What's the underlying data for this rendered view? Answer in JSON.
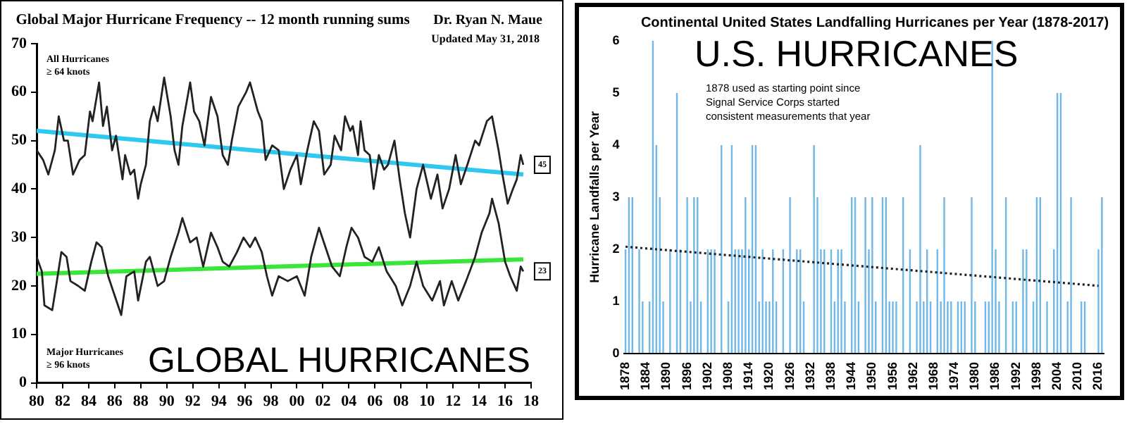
{
  "chart_data": [
    {
      "type": "line",
      "title": "Global Major Hurricane Frequency -- 12 month running sums",
      "xlim": [
        1980,
        2018
      ],
      "xticks": [
        {
          "value": 1980,
          "label": "80"
        },
        {
          "value": 1982,
          "label": "82"
        },
        {
          "value": 1984,
          "label": "84"
        },
        {
          "value": 1986,
          "label": "86"
        },
        {
          "value": 1988,
          "label": "88"
        },
        {
          "value": 1990,
          "label": "90"
        },
        {
          "value": 1992,
          "label": "92"
        },
        {
          "value": 1994,
          "label": "94"
        },
        {
          "value": 1996,
          "label": "96"
        },
        {
          "value": 1998,
          "label": "98"
        },
        {
          "value": 2000,
          "label": "00"
        },
        {
          "value": 2002,
          "label": "02"
        },
        {
          "value": 2004,
          "label": "04"
        },
        {
          "value": 2006,
          "label": "06"
        },
        {
          "value": 2008,
          "label": "08"
        },
        {
          "value": 2010,
          "label": "10"
        },
        {
          "value": 2012,
          "label": "12"
        },
        {
          "value": 2014,
          "label": "14"
        },
        {
          "value": 2016,
          "label": "16"
        },
        {
          "value": 2018,
          "label": "18"
        }
      ],
      "ylim": [
        0,
        70
      ],
      "yticks": [
        0,
        10,
        20,
        30,
        40,
        50,
        60,
        70
      ],
      "grid": false,
      "legend": false,
      "marker": "none",
      "series": [
        {
          "color": "#222222",
          "x": [
            1980.0,
            1980.5,
            1980.9,
            1981.4,
            1981.7,
            1982.1,
            1982.4,
            1982.8,
            1983.3,
            1983.7,
            1984.1,
            1984.3,
            1984.8,
            1985.1,
            1985.4,
            1985.8,
            1986.1,
            1986.6,
            1986.8,
            1987.2,
            1987.5,
            1987.8,
            1988.0,
            1988.4,
            1988.7,
            1989.0,
            1989.3,
            1989.8,
            1990.3,
            1990.6,
            1990.9,
            1991.2,
            1991.8,
            1992.1,
            1992.5,
            1992.9,
            1993.4,
            1993.9,
            1994.3,
            1994.7,
            1995.0,
            1995.5,
            1996.1,
            1996.4,
            1997.0,
            1997.3,
            1997.6,
            1998.1,
            1998.6,
            1999.0,
            1999.5,
            2000.0,
            2000.3,
            2000.8,
            2001.3,
            2001.7,
            2002.1,
            2002.6,
            2002.9,
            2003.4,
            2003.7,
            2004.1,
            2004.3,
            2004.7,
            2004.9,
            2005.2,
            2005.6,
            2005.9,
            2006.3,
            2006.7,
            2007.0,
            2007.5,
            2007.9,
            2008.3,
            2008.7,
            2009.2,
            2009.7,
            2010.3,
            2010.8,
            2011.2,
            2011.7,
            2012.2,
            2012.6,
            2013.1,
            2013.7,
            2014.0,
            2014.6,
            2015.0,
            2015.5,
            2015.8,
            2016.2,
            2016.6,
            2016.9,
            2017.2,
            2017.4
          ],
          "values": [
            48,
            46,
            43,
            48,
            55,
            50,
            50,
            43,
            46,
            47,
            56,
            54,
            62,
            53,
            57,
            48,
            51,
            42,
            47,
            43,
            44,
            38,
            41,
            45,
            54,
            57,
            54,
            63,
            55,
            48,
            45,
            53,
            62,
            56,
            54,
            49,
            59,
            55,
            47,
            45,
            50,
            57,
            60,
            62,
            56,
            54,
            46,
            49,
            48,
            40,
            44,
            47,
            41,
            48,
            54,
            52,
            43,
            45,
            51,
            48,
            55,
            52,
            53,
            47,
            54,
            48,
            47,
            40,
            47,
            44,
            45,
            50,
            42,
            35,
            30,
            40,
            45,
            38,
            43,
            36,
            40,
            47,
            41,
            45,
            50,
            49,
            54,
            55,
            48,
            43,
            37,
            40,
            42,
            47,
            45
          ]
        },
        {
          "color": "#222222",
          "x": [
            1980.0,
            1980.4,
            1980.6,
            1981.2,
            1981.5,
            1981.9,
            1982.3,
            1982.6,
            1983.2,
            1983.7,
            1984.2,
            1984.6,
            1985.0,
            1985.5,
            1986.0,
            1986.5,
            1986.9,
            1987.5,
            1987.8,
            1988.4,
            1988.7,
            1989.3,
            1989.8,
            1990.3,
            1990.9,
            1991.2,
            1991.8,
            1992.3,
            1992.8,
            1993.4,
            1993.9,
            1994.3,
            1994.8,
            1995.4,
            1995.9,
            1996.4,
            1996.8,
            1997.3,
            1997.7,
            1998.1,
            1998.6,
            1999.3,
            2000.0,
            2000.6,
            2001.1,
            2001.7,
            2002.2,
            2002.7,
            2003.3,
            2003.8,
            2004.2,
            2004.7,
            2005.2,
            2005.8,
            2006.3,
            2006.9,
            2007.6,
            2008.1,
            2008.7,
            2009.2,
            2009.7,
            2010.4,
            2011.0,
            2011.3,
            2011.9,
            2012.4,
            2013.0,
            2013.7,
            2014.2,
            2014.8,
            2015.0,
            2015.5,
            2016.0,
            2016.4,
            2016.9,
            2017.2,
            2017.4
          ],
          "values": [
            26,
            23,
            16,
            15,
            20,
            27,
            26,
            21,
            20,
            19,
            25,
            29,
            28,
            22,
            18,
            14,
            22,
            23,
            17,
            25,
            26,
            20,
            21,
            26,
            31,
            34,
            29,
            30,
            24,
            31,
            28,
            25,
            24,
            27,
            30,
            28,
            30,
            27,
            22,
            18,
            22,
            21,
            22,
            18,
            26,
            32,
            28,
            24,
            22,
            28,
            32,
            30,
            26,
            25,
            28,
            23,
            20,
            16,
            20,
            25,
            20,
            17,
            21,
            16,
            21,
            17,
            21,
            26,
            31,
            35,
            38,
            33,
            25,
            22,
            19,
            24,
            23
          ]
        },
        {
          "color": "#2ec8f0",
          "x": [
            1980,
            2017.4
          ],
          "values": [
            52,
            43
          ]
        },
        {
          "color": "#39e639",
          "x": [
            1980,
            2017.4
          ],
          "values": [
            22.5,
            25.5
          ]
        }
      ],
      "annotations": [
        "Dr. Ryan N. Maue",
        "Updated May 31, 2018",
        "All Hurricanes\n≥ 64 knots",
        "Major Hurricanes\n≥ 96 knots",
        "GLOBAL HURRICANES",
        {
          "text": "45",
          "x": 2017.4,
          "y": 45
        },
        {
          "text": "23",
          "x": 2017.4,
          "y": 23
        }
      ]
    },
    {
      "type": "bar",
      "title": "Continental United States Landfalling Hurricanes per Year (1878-2017)",
      "ylabel": "Hurricane Landfalls per Year",
      "categories": [
        "1878",
        null,
        null,
        null,
        null,
        null,
        "1884",
        null,
        null,
        null,
        null,
        null,
        "1890",
        null,
        null,
        null,
        null,
        null,
        "1896",
        null,
        null,
        null,
        null,
        null,
        "1902",
        null,
        null,
        null,
        null,
        null,
        "1908",
        null,
        null,
        null,
        null,
        null,
        "1914",
        null,
        null,
        null,
        null,
        null,
        "1920",
        null,
        null,
        null,
        null,
        null,
        "1926",
        null,
        null,
        null,
        null,
        null,
        "1932",
        null,
        null,
        null,
        null,
        null,
        "1938",
        null,
        null,
        null,
        null,
        null,
        "1944",
        null,
        null,
        null,
        null,
        null,
        "1950",
        null,
        null,
        null,
        null,
        null,
        "1956",
        null,
        null,
        null,
        null,
        null,
        "1962",
        null,
        null,
        null,
        null,
        null,
        "1968",
        null,
        null,
        null,
        null,
        null,
        "1974",
        null,
        null,
        null,
        null,
        null,
        "1980",
        null,
        null,
        null,
        null,
        null,
        "1986",
        null,
        null,
        null,
        null,
        null,
        "1992",
        null,
        null,
        null,
        null,
        null,
        "1998",
        null,
        null,
        null,
        null,
        null,
        "2004",
        null,
        null,
        null,
        null,
        null,
        "2010",
        null,
        null,
        null,
        null,
        null,
        "2016",
        null
      ],
      "ylim": [
        0,
        6
      ],
      "yticks": [
        0,
        1,
        2,
        3,
        4,
        5,
        6
      ],
      "grid": false,
      "legend": false,
      "series": [
        {
          "color": "#73b9e8",
          "values": [
            2,
            3,
            3,
            0,
            2,
            1,
            0,
            1,
            6,
            4,
            3,
            1,
            0,
            2,
            0,
            5,
            2,
            0,
            3,
            1,
            3,
            3,
            1,
            0,
            2,
            2,
            2,
            0,
            4,
            0,
            1,
            4,
            2,
            2,
            2,
            3,
            2,
            4,
            4,
            1,
            2,
            1,
            1,
            2,
            1,
            0,
            2,
            0,
            3,
            0,
            2,
            2,
            1,
            0,
            0,
            4,
            3,
            2,
            2,
            0,
            2,
            1,
            2,
            2,
            1,
            0,
            3,
            3,
            1,
            0,
            3,
            2,
            3,
            1,
            0,
            3,
            3,
            1,
            1,
            1,
            0,
            3,
            0,
            2,
            0,
            1,
            4,
            1,
            2,
            1,
            0,
            2,
            1,
            3,
            1,
            1,
            0,
            1,
            1,
            1,
            0,
            3,
            1,
            0,
            0,
            1,
            1,
            6,
            2,
            1,
            0,
            3,
            0,
            1,
            1,
            0,
            2,
            2,
            0,
            1,
            3,
            3,
            0,
            1,
            0,
            2,
            5,
            5,
            0,
            1,
            3,
            0,
            0,
            1,
            1,
            0,
            0,
            0,
            2,
            3
          ]
        },
        {
          "type": "line",
          "color": "#222222",
          "line_style": "dotted",
          "marker": "none",
          "values": [
            2.05,
            null,
            null,
            null,
            null,
            null,
            null,
            null,
            null,
            null,
            null,
            null,
            null,
            null,
            null,
            null,
            null,
            null,
            null,
            null,
            null,
            null,
            null,
            null,
            null,
            null,
            null,
            null,
            null,
            null,
            null,
            null,
            null,
            null,
            null,
            null,
            null,
            null,
            null,
            null,
            null,
            null,
            null,
            null,
            null,
            null,
            null,
            null,
            null,
            null,
            null,
            null,
            null,
            null,
            null,
            null,
            null,
            null,
            null,
            null,
            null,
            null,
            null,
            null,
            null,
            null,
            null,
            null,
            null,
            null,
            null,
            null,
            null,
            null,
            null,
            null,
            null,
            null,
            null,
            null,
            null,
            null,
            null,
            null,
            null,
            null,
            null,
            null,
            null,
            null,
            null,
            null,
            null,
            null,
            null,
            null,
            null,
            null,
            null,
            null,
            null,
            null,
            null,
            null,
            null,
            null,
            null,
            null,
            null,
            null,
            null,
            null,
            null,
            null,
            null,
            null,
            null,
            null,
            null,
            null,
            null,
            null,
            null,
            null,
            null,
            null,
            null,
            null,
            null,
            null,
            null,
            null,
            null,
            null,
            null,
            null,
            null,
            null,
            1.3,
            null
          ]
        }
      ],
      "annotations": [
        "U.S. HURRICANES",
        "1878 used as starting point since\nSignal Service Corps started\nconsistent measurements that year"
      ]
    }
  ]
}
